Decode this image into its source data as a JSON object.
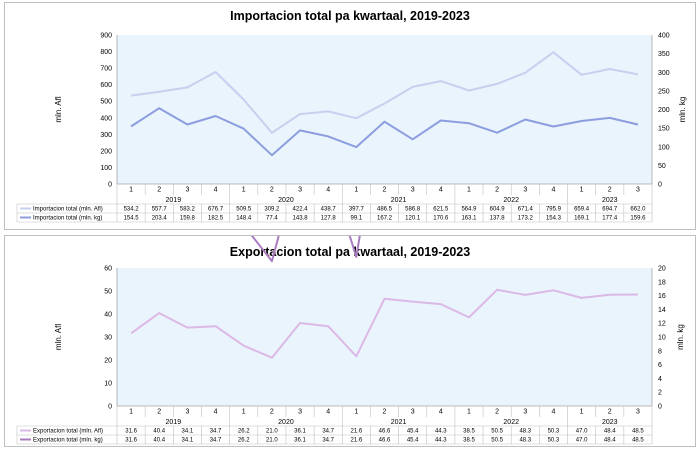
{
  "chart_data": [
    {
      "type": "line",
      "title": "Importacion total pa kwartaal, 2019-2023",
      "ylabel": "mln. Afl",
      "y2label": "mln. kg",
      "ylim": [
        0,
        900
      ],
      "y2lim": [
        0,
        400
      ],
      "yticks": [
        0,
        100,
        200,
        300,
        400,
        500,
        600,
        700,
        800,
        900
      ],
      "y2ticks": [
        0,
        50,
        100,
        150,
        200,
        250,
        300,
        350,
        400
      ],
      "quarters": [
        "1",
        "2",
        "3",
        "4",
        "1",
        "2",
        "3",
        "4",
        "1",
        "2",
        "3",
        "4",
        "1",
        "2",
        "3",
        "4",
        "1",
        "2",
        "3"
      ],
      "years": [
        {
          "label": "2019",
          "count": 4
        },
        {
          "label": "2020",
          "count": 4
        },
        {
          "label": "2021",
          "count": 4
        },
        {
          "label": "2022",
          "count": 4
        },
        {
          "label": "2023",
          "count": 3
        }
      ],
      "grid": false,
      "series": [
        {
          "name": "Importacion total (mln. Afl)",
          "axis": "left",
          "color": "#c6d0ef",
          "values": [
            "534.2",
            "557.7",
            "583.2",
            "676.7",
            "509.5",
            "309.2",
            "422.4",
            "438.7",
            "397.7",
            "486.5",
            "586.8",
            "621.5",
            "564.9",
            "604.9",
            "671.4",
            "795.9",
            "659.4",
            "694.7",
            "662.0"
          ]
        },
        {
          "name": "Importacion total (mln. kg)",
          "axis": "right",
          "color": "#8c9de0",
          "values": [
            "154.5",
            "203.4",
            "159.8",
            "182.5",
            "148.4",
            "77.4",
            "143.8",
            "127.8",
            "99.1",
            "167.2",
            "120.1",
            "170.6",
            "163.1",
            "137.8",
            "173.2",
            "154.3",
            "169.1",
            "177.4",
            "159.6"
          ]
        }
      ]
    },
    {
      "type": "line",
      "title": "Exportacion total pa kwartaal, 2019-2023",
      "ylabel": "mln. Afl",
      "y2label": "mln. kg",
      "ylim": [
        0,
        60
      ],
      "y2lim": [
        0,
        20
      ],
      "yticks": [
        0,
        10,
        20,
        30,
        40,
        50,
        60
      ],
      "y2ticks": [
        0,
        2,
        4,
        6,
        8,
        10,
        12,
        14,
        16,
        18,
        20
      ],
      "quarters": [
        "1",
        "2",
        "3",
        "4",
        "1",
        "2",
        "3",
        "4",
        "1",
        "2",
        "3",
        "4",
        "1",
        "2",
        "3",
        "4",
        "1",
        "2",
        "3"
      ],
      "years": [
        {
          "label": "2019",
          "count": 4
        },
        {
          "label": "2020",
          "count": 4
        },
        {
          "label": "2021",
          "count": 4
        },
        {
          "label": "2022",
          "count": 4
        },
        {
          "label": "2023",
          "count": 3
        }
      ],
      "grid": false,
      "series": [
        {
          "name": "Exportacion total (mln. Afl)",
          "axis": "left",
          "color": "#dcb8e6",
          "values": [
            "31.6",
            "40.4",
            "34.1",
            "34.7",
            "26.2",
            "21.0",
            "36.1",
            "34.7",
            "21.6",
            "46.6",
            "45.4",
            "44.3",
            "38.5",
            "50.5",
            "48.3",
            "50.3",
            "47.0",
            "48.4",
            "48.5"
          ]
        },
        {
          "name": "Exportacion total (mln. kg)",
          "axis": "right",
          "color": "#a97cc0",
          "values": [
            "31.6",
            "40.4",
            "34.1",
            "34.7",
            "26.2",
            "21.0",
            "36.1",
            "34.7",
            "21.6",
            "46.6",
            "45.4",
            "44.3",
            "38.5",
            "50.5",
            "48.3",
            "50.3",
            "47.0",
            "48.4",
            "48.5"
          ]
        }
      ]
    }
  ]
}
